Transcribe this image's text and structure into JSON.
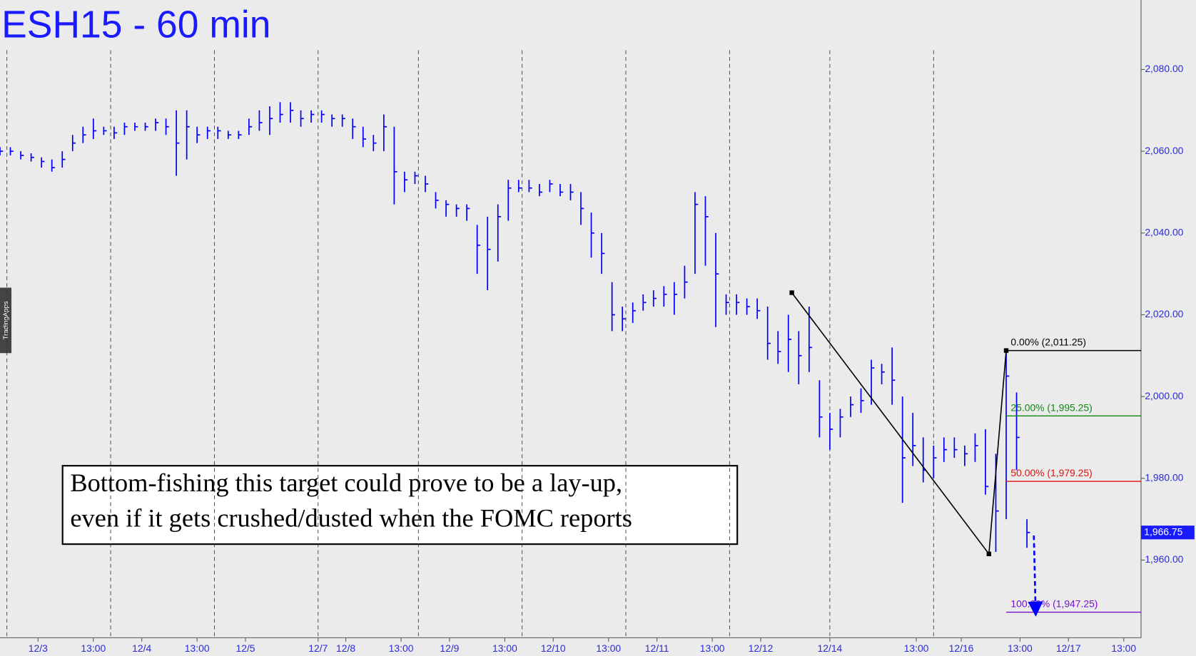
{
  "chart_data": {
    "type": "ohlc",
    "title": "ESH15 - 60 min",
    "color": "#0000ff",
    "watermark": "TradingApps",
    "annotation": [
      "Bottom-fishing this target could prove to be a lay-up,",
      "even if it gets crushed/dusted when the FOMC reports"
    ],
    "x": [
      0,
      3,
      6,
      9,
      12,
      15,
      18,
      21,
      24,
      27,
      30,
      33,
      36,
      39,
      42,
      45,
      48,
      51,
      54,
      57,
      60,
      63,
      66,
      69,
      72,
      75,
      78,
      81,
      84,
      87,
      90,
      93,
      96,
      99,
      102,
      105,
      108,
      111,
      114,
      117,
      120,
      123,
      126,
      129,
      132,
      135,
      138,
      141,
      144,
      147,
      150,
      153,
      156,
      159,
      162,
      165,
      168,
      171,
      174,
      177,
      180,
      183,
      186,
      189,
      192,
      195,
      198,
      201,
      204,
      207,
      210,
      213,
      216,
      219,
      222,
      225,
      228,
      231,
      234,
      237,
      240,
      243,
      246,
      249,
      252,
      255,
      258,
      261,
      264,
      267,
      270,
      273,
      276,
      279,
      282,
      285,
      288,
      291,
      294,
      297
    ],
    "high": [
      2061,
      2061,
      2060,
      2059.5,
      2058.5,
      2058,
      2060,
      2064,
      2066,
      2068,
      2066,
      2066,
      2067,
      2067,
      2067,
      2068,
      2068,
      2070,
      2070,
      2066,
      2066,
      2066,
      2065,
      2065,
      2068,
      2070,
      2071,
      2072,
      2072,
      2070,
      2070,
      2070,
      2069,
      2069,
      2068,
      2066,
      2064,
      2069,
      2066,
      2055,
      2055,
      2054,
      2050,
      2048,
      2047,
      2047,
      2042,
      2044,
      2047,
      2053,
      2053,
      2053,
      2052,
      2053,
      2052,
      2052,
      2050,
      2045,
      2040,
      2028,
      2022,
      2023,
      2025,
      2026,
      2027,
      2028,
      2032,
      2050,
      2049,
      2040,
      2025,
      2025,
      2024,
      2024,
      2022,
      2016,
      2020,
      2016,
      2022,
      2004,
      1996,
      1997,
      2000,
      2002,
      2009,
      2008,
      2012,
      2000,
      1996,
      1990,
      1988,
      1990,
      1990,
      1988,
      1991,
      1992,
      1986,
      2011,
      2001,
      1970
    ],
    "low": [
      2059,
      2059,
      2058,
      2057.5,
      2056,
      2055,
      2056,
      2060,
      2062,
      2063,
      2064,
      2063,
      2064,
      2065,
      2065,
      2065,
      2064,
      2054,
      2058,
      2062,
      2063,
      2063,
      2063,
      2063,
      2064,
      2065,
      2064,
      2067,
      2067,
      2066,
      2067,
      2067,
      2066,
      2066,
      2063,
      2061,
      2060,
      2060,
      2047,
      2050,
      2052,
      2050,
      2046,
      2044,
      2044,
      2043,
      2030,
      2026,
      2033,
      2043,
      2050,
      2050,
      2049,
      2050,
      2049,
      2048,
      2042,
      2034,
      2030,
      2016,
      2016,
      2018,
      2021,
      2022,
      2022,
      2020,
      2024,
      2030,
      2032,
      2017,
      2020,
      2020,
      2020,
      2019,
      2009,
      2008,
      2006,
      2003,
      2006,
      1990,
      1987,
      1990,
      1995,
      1996,
      1998,
      2003,
      1998,
      1974,
      1983,
      1979,
      1980,
      1984,
      1985,
      1983,
      1984,
      1976,
      1962,
      1970,
      1982,
      1963
    ],
    "close": [
      2060,
      2060,
      2059,
      2058.5,
      2057.5,
      2056,
      2058,
      2062,
      2064,
      2065,
      2065,
      2064.5,
      2066,
      2066,
      2066,
      2067,
      2066,
      2062,
      2066,
      2064,
      2065,
      2065,
      2064,
      2064,
      2066,
      2067,
      2068,
      2069,
      2070,
      2068,
      2069,
      2069,
      2068,
      2068,
      2066,
      2063,
      2062,
      2066,
      2055,
      2053,
      2054,
      2052,
      2048,
      2047,
      2046,
      2046,
      2037,
      2036,
      2044,
      2051,
      2051,
      2051,
      2050,
      2052,
      2050,
      2050,
      2046,
      2040,
      2035,
      2020,
      2019,
      2021,
      2023,
      2024,
      2025,
      2025,
      2028,
      2047,
      2044,
      2030,
      2023,
      2023,
      2022,
      2021,
      2013,
      2011,
      2014,
      2010,
      2012,
      1995,
      1992,
      1995,
      1998,
      1999,
      2007,
      2006,
      2004,
      1985,
      1988,
      1982,
      1985,
      1987,
      1987,
      1986,
      1988,
      1978,
      1972,
      2005,
      1990,
      1966.75
    ],
    "xlim": [
      0,
      330
    ],
    "ylim": [
      1941,
      2097
    ],
    "yticks": [
      {
        "value": 1960,
        "label": "1,960.00"
      },
      {
        "value": 1980,
        "label": "1,980.00"
      },
      {
        "value": 2000,
        "label": "2,000.00"
      },
      {
        "value": 2020,
        "label": "2,020.00"
      },
      {
        "value": 2040,
        "label": "2,040.00"
      },
      {
        "value": 2060,
        "label": "2,060.00"
      },
      {
        "value": 2080,
        "label": "2,080.00"
      }
    ],
    "xticks": [
      {
        "value": 11,
        "label": "12/3"
      },
      {
        "value": 27,
        "label": "13:00"
      },
      {
        "value": 41,
        "label": "12/4"
      },
      {
        "value": 57,
        "label": "13:00"
      },
      {
        "value": 71,
        "label": "12/5"
      },
      {
        "value": 92,
        "label": "12/7"
      },
      {
        "value": 100,
        "label": "12/8"
      },
      {
        "value": 116,
        "label": "13:00"
      },
      {
        "value": 130,
        "label": "12/9"
      },
      {
        "value": 146,
        "label": "13:00"
      },
      {
        "value": 160,
        "label": "12/10"
      },
      {
        "value": 176,
        "label": "13:00"
      },
      {
        "value": 190,
        "label": "12/11"
      },
      {
        "value": 206,
        "label": "13:00"
      },
      {
        "value": 220,
        "label": "12/12"
      },
      {
        "value": 240,
        "label": "12/14"
      },
      {
        "value": 265,
        "label": "13:00"
      },
      {
        "value": 278,
        "label": "12/16"
      },
      {
        "value": 295,
        "label": "13:00"
      },
      {
        "value": 309,
        "label": "12/17"
      },
      {
        "value": 325,
        "label": "13:00"
      }
    ],
    "session_lines": [
      2,
      32,
      62,
      92,
      121,
      151,
      181,
      211,
      240,
      270
    ],
    "last_price": {
      "value": 1966.75,
      "label": "1,966.75"
    },
    "pattern": {
      "x": [
        229,
        286,
        291
      ],
      "y": [
        2025.4,
        1961.5,
        2011.25
      ]
    },
    "projection": {
      "x": [
        299,
        299.5
      ],
      "y": [
        1966,
        1948
      ]
    },
    "fib_levels": [
      {
        "value": 2011.25,
        "label": "0.00% (2,011.25)",
        "color": "#000000"
      },
      {
        "value": 1995.25,
        "label": "25.00% (1,995.25)",
        "color": "#118811"
      },
      {
        "value": 1979.25,
        "label": "50.00% (1,979.25)",
        "color": "#dd1111"
      },
      {
        "value": 1947.25,
        "label": "100.00% (1,947.25)",
        "color": "#7711cc"
      }
    ]
  }
}
